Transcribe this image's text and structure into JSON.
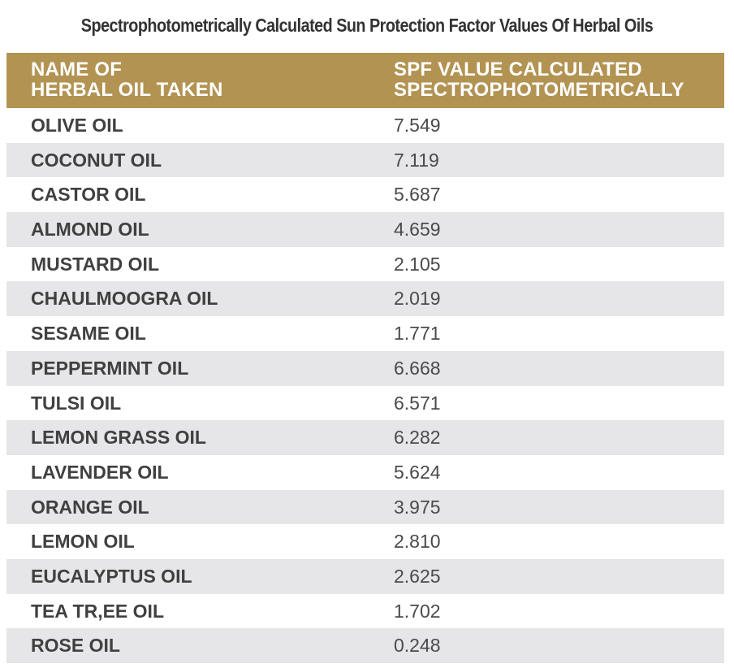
{
  "title": "Spectrophotometrically Calculated Sun Protection Factor Values Of Herbal Oils",
  "table": {
    "headers": [
      "NAME OF\nHERBAL OIL TAKEN",
      "SPF VALUE CALCULATED\nSPECTROPHOTOMETRICALLY"
    ],
    "rows": [
      {
        "name": "OLIVE OIL",
        "value": "7.549"
      },
      {
        "name": "COCONUT OIL",
        "value": "7.119"
      },
      {
        "name": "CASTOR OIL",
        "value": "5.687"
      },
      {
        "name": "ALMOND OIL",
        "value": "4.659"
      },
      {
        "name": "MUSTARD OIL",
        "value": "2.105"
      },
      {
        "name": "CHAULMOOGRA OIL",
        "value": "2.019"
      },
      {
        "name": "SESAME OIL",
        "value": "1.771"
      },
      {
        "name": "PEPPERMINT OIL",
        "value": "6.668"
      },
      {
        "name": "TULSI OIL",
        "value": "6.571"
      },
      {
        "name": "LEMON GRASS OIL",
        "value": "6.282"
      },
      {
        "name": "LAVENDER OIL",
        "value": "5.624"
      },
      {
        "name": "ORANGE OIL",
        "value": "3.975"
      },
      {
        "name": "LEMON OIL",
        "value": "2.810"
      },
      {
        "name": "EUCALYPTUS OIL",
        "value": "2.625"
      },
      {
        "name": "TEA TR,EE OIL",
        "value": "1.702"
      },
      {
        "name": "ROSE OIL",
        "value": "0.248"
      }
    ]
  },
  "colors": {
    "header_bg": "#b29352",
    "header_text": "#ffffff",
    "stripe": "#e6e6e8",
    "title_text": "#333333"
  }
}
